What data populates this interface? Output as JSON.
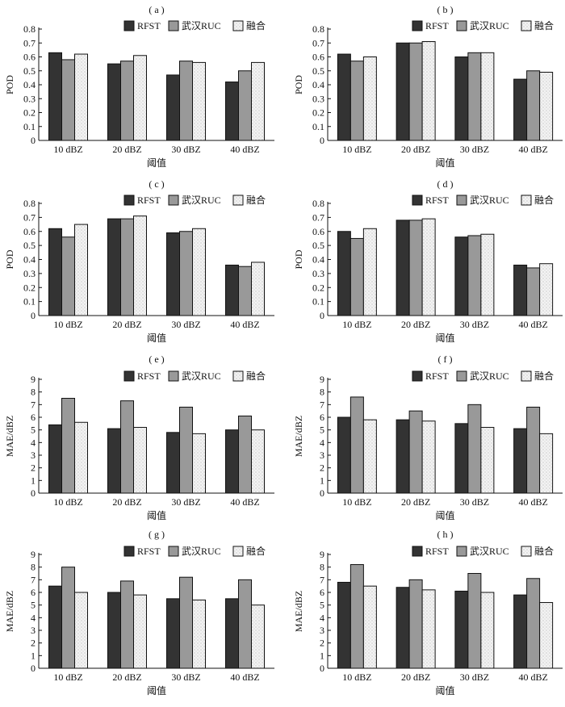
{
  "legend": [
    "RFST",
    "武汉RUC",
    "融合"
  ],
  "series_style": {
    "RFST": "#333333",
    "武汉RUC": "#999999",
    "融合": "#f2f2f2"
  },
  "chart_data": [
    {
      "type": "bar",
      "panel_label": "( a )",
      "categories": [
        "10 dBZ",
        "20 dBZ",
        "30 dBZ",
        "40 dBZ"
      ],
      "series": [
        {
          "name": "RFST",
          "values": [
            0.63,
            0.55,
            0.47,
            0.42
          ]
        },
        {
          "name": "武汉RUC",
          "values": [
            0.58,
            0.57,
            0.57,
            0.5
          ]
        },
        {
          "name": "融合",
          "values": [
            0.62,
            0.61,
            0.56,
            0.56
          ]
        }
      ],
      "xlabel": "阈值",
      "ylabel": "POD",
      "ylim": [
        0,
        0.8
      ],
      "yticks": [
        "0",
        "0.1",
        "0.2",
        "0.3",
        "0.4",
        "0.5",
        "0.6",
        "0.7",
        "0.8"
      ],
      "grid": false,
      "legend_position": "top-right"
    },
    {
      "type": "bar",
      "panel_label": "( b )",
      "categories": [
        "10 dBZ",
        "20 dBZ",
        "30 dBZ",
        "40 dBZ"
      ],
      "series": [
        {
          "name": "RFST",
          "values": [
            0.62,
            0.7,
            0.6,
            0.44
          ]
        },
        {
          "name": "武汉RUC",
          "values": [
            0.57,
            0.7,
            0.63,
            0.5
          ]
        },
        {
          "name": "融合",
          "values": [
            0.6,
            0.71,
            0.63,
            0.49
          ]
        }
      ],
      "xlabel": "阈值",
      "ylabel": "POD",
      "ylim": [
        0,
        0.8
      ],
      "yticks": [
        "0",
        "0.1",
        "0.2",
        "0.3",
        "0.4",
        "0.5",
        "0.6",
        "0.7",
        "0.8"
      ],
      "grid": false,
      "legend_position": "top-right"
    },
    {
      "type": "bar",
      "panel_label": "( c )",
      "categories": [
        "10 dBZ",
        "20 dBZ",
        "30 dBZ",
        "40 dBZ"
      ],
      "series": [
        {
          "name": "RFST",
          "values": [
            0.62,
            0.69,
            0.59,
            0.36
          ]
        },
        {
          "name": "武汉RUC",
          "values": [
            0.56,
            0.69,
            0.6,
            0.35
          ]
        },
        {
          "name": "融合",
          "values": [
            0.65,
            0.71,
            0.62,
            0.38
          ]
        }
      ],
      "xlabel": "阈值",
      "ylabel": "POD",
      "ylim": [
        0,
        0.8
      ],
      "yticks": [
        "0",
        "0.1",
        "0.2",
        "0.3",
        "0.4",
        "0.5",
        "0.6",
        "0.7",
        "0.8"
      ],
      "grid": false,
      "legend_position": "top-right"
    },
    {
      "type": "bar",
      "panel_label": "( d )",
      "categories": [
        "10 dBZ",
        "20 dBZ",
        "30 dBZ",
        "40 dBZ"
      ],
      "series": [
        {
          "name": "RFST",
          "values": [
            0.6,
            0.68,
            0.56,
            0.36
          ]
        },
        {
          "name": "武汉RUC",
          "values": [
            0.55,
            0.68,
            0.57,
            0.34
          ]
        },
        {
          "name": "融合",
          "values": [
            0.62,
            0.69,
            0.58,
            0.37
          ]
        }
      ],
      "xlabel": "阈值",
      "ylabel": "POD",
      "ylim": [
        0,
        0.8
      ],
      "yticks": [
        "0",
        "0.1",
        "0.2",
        "0.3",
        "0.4",
        "0.5",
        "0.6",
        "0.7",
        "0.8"
      ],
      "grid": false,
      "legend_position": "top-right"
    },
    {
      "type": "bar",
      "panel_label": "( e )",
      "categories": [
        "10 dBZ",
        "20 dBZ",
        "30 dBZ",
        "40 dBZ"
      ],
      "series": [
        {
          "name": "RFST",
          "values": [
            5.4,
            5.1,
            4.8,
            5.0
          ]
        },
        {
          "name": "武汉RUC",
          "values": [
            7.5,
            7.3,
            6.8,
            6.1
          ]
        },
        {
          "name": "融合",
          "values": [
            5.6,
            5.2,
            4.7,
            5.0
          ]
        }
      ],
      "xlabel": "阈值",
      "ylabel": "MAE/dBZ",
      "ylim": [
        0,
        9
      ],
      "yticks": [
        "0",
        "1",
        "2",
        "3",
        "4",
        "5",
        "6",
        "7",
        "8",
        "9"
      ],
      "grid": false,
      "legend_position": "top-right"
    },
    {
      "type": "bar",
      "panel_label": "( f )",
      "categories": [
        "10 dBZ",
        "20 dBZ",
        "30 dBZ",
        "40 dBZ"
      ],
      "series": [
        {
          "name": "RFST",
          "values": [
            6.0,
            5.8,
            5.5,
            5.1
          ]
        },
        {
          "name": "武汉RUC",
          "values": [
            7.6,
            6.5,
            7.0,
            6.8
          ]
        },
        {
          "name": "融合",
          "values": [
            5.8,
            5.7,
            5.2,
            4.7
          ]
        }
      ],
      "xlabel": "阈值",
      "ylabel": "MAE/dBZ",
      "ylim": [
        0,
        9
      ],
      "yticks": [
        "0",
        "1",
        "2",
        "3",
        "4",
        "5",
        "6",
        "7",
        "8",
        "9"
      ],
      "grid": false,
      "legend_position": "top-right"
    },
    {
      "type": "bar",
      "panel_label": "( g )",
      "categories": [
        "10 dBZ",
        "20 dBZ",
        "30 dBZ",
        "40 dBZ"
      ],
      "series": [
        {
          "name": "RFST",
          "values": [
            6.5,
            6.0,
            5.5,
            5.5
          ]
        },
        {
          "name": "武汉RUC",
          "values": [
            8.0,
            6.9,
            7.2,
            7.0
          ]
        },
        {
          "name": "融合",
          "values": [
            6.0,
            5.8,
            5.4,
            5.0
          ]
        }
      ],
      "xlabel": "阈值",
      "ylabel": "MAE/dBZ",
      "ylim": [
        0,
        9
      ],
      "yticks": [
        "0",
        "1",
        "2",
        "3",
        "4",
        "5",
        "6",
        "7",
        "8",
        "9"
      ],
      "grid": false,
      "legend_position": "top-right"
    },
    {
      "type": "bar",
      "panel_label": "( h )",
      "categories": [
        "10 dBZ",
        "20 dBZ",
        "30 dBZ",
        "40 dBZ"
      ],
      "series": [
        {
          "name": "RFST",
          "values": [
            6.8,
            6.4,
            6.1,
            5.8
          ]
        },
        {
          "name": "武汉RUC",
          "values": [
            8.2,
            7.0,
            7.5,
            7.1
          ]
        },
        {
          "name": "融合",
          "values": [
            6.5,
            6.2,
            6.0,
            5.2
          ]
        }
      ],
      "xlabel": "阈值",
      "ylabel": "MAE/dBZ",
      "ylim": [
        0,
        9
      ],
      "yticks": [
        "0",
        "1",
        "2",
        "3",
        "4",
        "5",
        "6",
        "7",
        "8",
        "9"
      ],
      "grid": false,
      "legend_position": "top-right"
    }
  ]
}
